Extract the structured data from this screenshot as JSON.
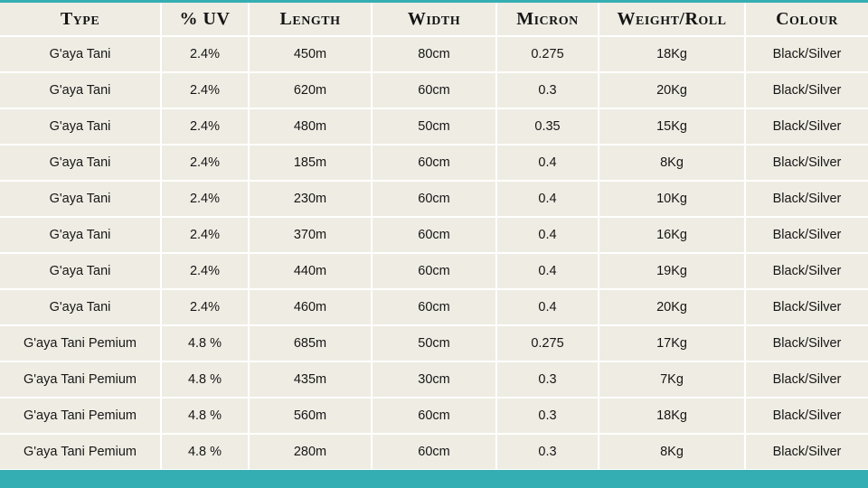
{
  "table": {
    "headers": [
      "Type",
      "% UV",
      "Length",
      "Width",
      "Micron",
      "Weight/Roll",
      "Colour"
    ],
    "rows": [
      [
        "G'aya Tani",
        "2.4%",
        "450m",
        "80cm",
        "0.275",
        "18Kg",
        "Black/Silver"
      ],
      [
        "G'aya Tani",
        "2.4%",
        "620m",
        "60cm",
        "0.3",
        "20Kg",
        "Black/Silver"
      ],
      [
        "G'aya Tani",
        "2.4%",
        "480m",
        "50cm",
        "0.35",
        "15Kg",
        "Black/Silver"
      ],
      [
        "G'aya Tani",
        "2.4%",
        "185m",
        "60cm",
        "0.4",
        "8Kg",
        "Black/Silver"
      ],
      [
        "G'aya Tani",
        "2.4%",
        "230m",
        "60cm",
        "0.4",
        "10Kg",
        "Black/Silver"
      ],
      [
        "G'aya Tani",
        "2.4%",
        "370m",
        "60cm",
        "0.4",
        "16Kg",
        "Black/Silver"
      ],
      [
        "G'aya Tani",
        "2.4%",
        "440m",
        "60cm",
        "0.4",
        "19Kg",
        "Black/Silver"
      ],
      [
        "G'aya Tani",
        "2.4%",
        "460m",
        "60cm",
        "0.4",
        "20Kg",
        "Black/Silver"
      ],
      [
        "G'aya Tani Pemium",
        "4.8 %",
        "685m",
        "50cm",
        "0.275",
        "17Kg",
        "Black/Silver"
      ],
      [
        "G'aya Tani Pemium",
        "4.8 %",
        "435m",
        "30cm",
        "0.3",
        "7Kg",
        "Black/Silver"
      ],
      [
        "G'aya Tani Pemium",
        "4.8 %",
        "560m",
        "60cm",
        "0.3",
        "18Kg",
        "Black/Silver"
      ],
      [
        "G'aya Tani Pemium",
        "4.8 %",
        "280m",
        "60cm",
        "0.3",
        "8Kg",
        "Black/Silver"
      ]
    ]
  },
  "colors": {
    "background": "#efece3",
    "accent_bar": "#35aeb3",
    "grid_lines": "#ffffff",
    "text": "#111111"
  }
}
